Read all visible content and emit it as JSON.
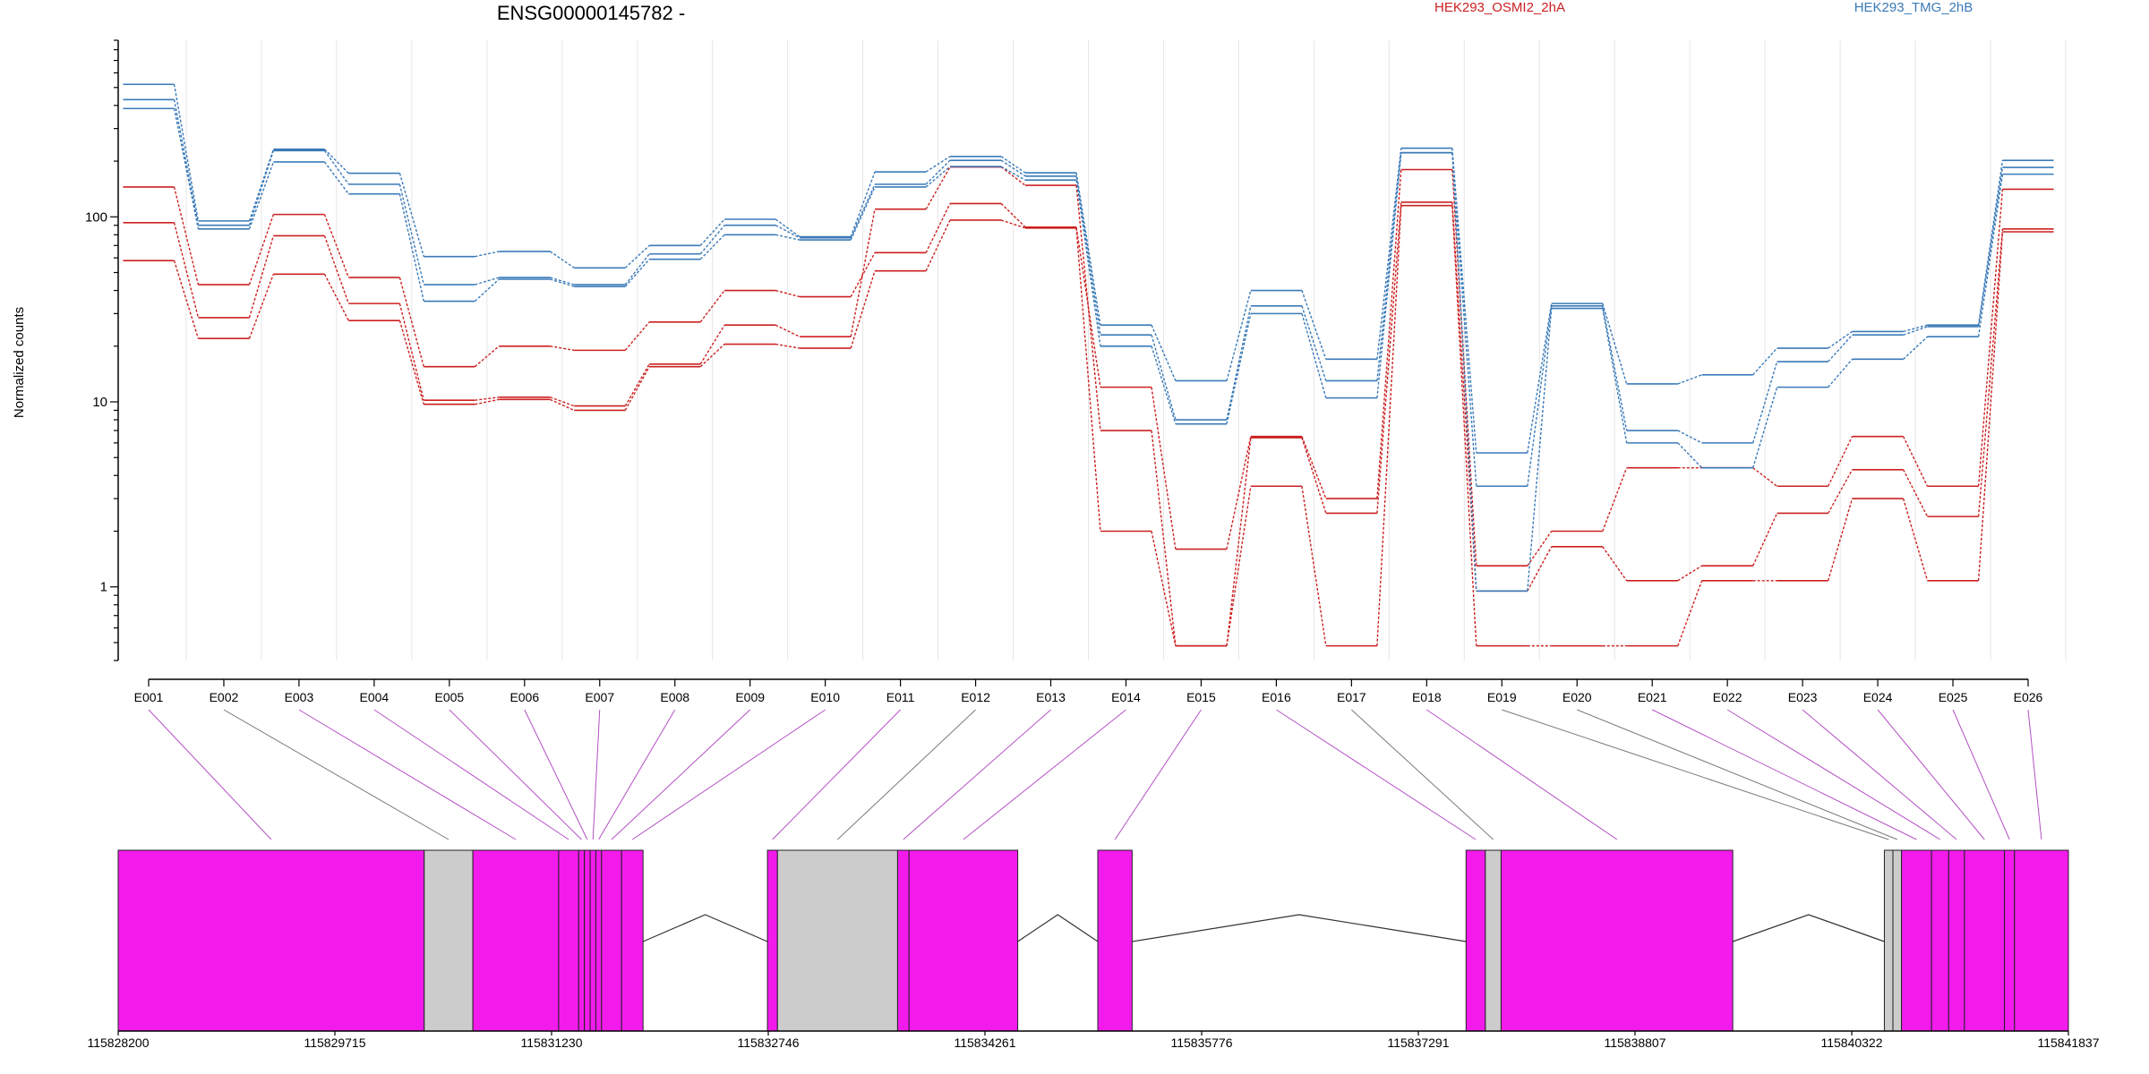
{
  "title": "ENSG00000145782 -",
  "chart_data": {
    "type": "line",
    "title": "ENSG00000145782 -",
    "ylabel": "Normalized counts",
    "xlabel": "",
    "yscale": "log",
    "ylim": [
      0.4,
      900
    ],
    "yticks": [
      {
        "value": 1,
        "label": "1"
      },
      {
        "value": 10,
        "label": "10"
      },
      {
        "value": 100,
        "label": "100"
      }
    ],
    "grid": "vertical",
    "legend_placement": "top",
    "categories": [
      "E001",
      "E002",
      "E003",
      "E004",
      "E005",
      "E006",
      "E007",
      "E008",
      "E009",
      "E010",
      "E011",
      "E012",
      "E013",
      "E014",
      "E015",
      "E016",
      "E017",
      "E018",
      "E019",
      "E020",
      "E021",
      "E022",
      "E023",
      "E024",
      "E025",
      "E026"
    ],
    "groups": [
      {
        "name": "HEK293_OSMI2_2hA",
        "color": "#cc2020"
      },
      {
        "name": "HEK293_TMG_2hB",
        "color": "#3a7ab8"
      }
    ],
    "series": [
      {
        "group": "HEK293_OSMI2_2hA",
        "values": [
          145,
          43,
          103,
          47,
          15.5,
          20,
          19,
          27,
          40,
          37,
          64,
          118,
          88,
          12,
          1.6,
          6.5,
          3,
          180,
          1.3,
          2,
          4.4,
          4.4,
          3.5,
          6.5,
          3.5,
          141
        ]
      },
      {
        "group": "HEK293_OSMI2_2hA",
        "values": [
          93,
          28.5,
          79,
          34,
          10.2,
          10.6,
          9.5,
          16,
          26,
          22.5,
          110,
          186,
          148,
          7,
          0.48,
          6.4,
          2.5,
          120,
          0.95,
          1.65,
          1.08,
          1.3,
          2.5,
          4.3,
          2.4,
          86
        ]
      },
      {
        "group": "HEK293_OSMI2_2hA",
        "values": [
          58,
          22,
          49,
          27.5,
          9.7,
          10.3,
          9,
          15.5,
          20.5,
          19.5,
          51,
          96,
          87,
          2,
          0.48,
          3.5,
          0.48,
          115,
          0.48,
          0.48,
          0.48,
          1.08,
          1.08,
          3,
          1.08,
          83
        ]
      },
      {
        "group": "HEK293_TMG_2hB",
        "values": [
          520,
          95,
          232,
          172,
          61,
          65,
          53,
          70,
          97,
          78,
          175,
          212,
          173,
          26,
          13,
          40,
          17,
          235,
          5.3,
          34,
          12.5,
          14,
          19.5,
          24,
          26,
          202
        ]
      },
      {
        "group": "HEK293_TMG_2hB",
        "values": [
          430,
          90,
          228,
          150,
          43,
          47,
          43,
          63,
          90,
          77,
          150,
          202,
          166,
          23,
          8,
          33,
          13,
          222,
          3.5,
          33,
          7,
          6,
          16.5,
          23,
          25.5,
          185
        ]
      },
      {
        "group": "HEK293_TMG_2hB",
        "values": [
          385,
          86,
          198,
          133,
          35,
          46,
          42,
          59,
          80,
          75,
          145,
          187,
          158,
          20,
          7.6,
          30,
          10.5,
          222,
          0.95,
          32,
          6,
          4.4,
          12,
          17,
          22.5,
          170
        ]
      }
    ]
  },
  "gene_model": {
    "coord_labels": [
      "115828200",
      "115829715",
      "115831230",
      "115832746",
      "115834261",
      "115835776",
      "115837291",
      "115838807",
      "115840322",
      "115841837"
    ],
    "coord_start": 115828200,
    "coord_end": 115841837,
    "colors": {
      "tested_exon": "#f21bec",
      "untested_exon": "#cccccc",
      "highlight_link": "#b450c4",
      "plain_link": "#7a7a7a",
      "intron": "#333333"
    },
    "blocks": [
      {
        "bin": "E001",
        "start": 115828200,
        "end": 115830340,
        "tested": true
      },
      {
        "bin": "E002",
        "start": 115830340,
        "end": 115830680,
        "tested": false
      },
      {
        "bin": "E003",
        "start": 115830680,
        "end": 115831280,
        "tested": true
      },
      {
        "bin": "E004",
        "start": 115831280,
        "end": 115831420,
        "tested": true
      },
      {
        "bin": "E005",
        "start": 115831420,
        "end": 115831460,
        "tested": true
      },
      {
        "bin": "E006",
        "start": 115831460,
        "end": 115831500,
        "tested": true
      },
      {
        "bin": "E007",
        "start": 115831500,
        "end": 115831540,
        "tested": true
      },
      {
        "bin": "E008",
        "start": 115831540,
        "end": 115831580,
        "tested": true
      },
      {
        "bin": "E009",
        "start": 115831580,
        "end": 115831720,
        "tested": true
      },
      {
        "bin": "E010",
        "start": 115831720,
        "end": 115831870,
        "tested": true
      },
      {
        "bin": "E011",
        "start": 115832740,
        "end": 115832810,
        "tested": true
      },
      {
        "bin": "E012",
        "start": 115832810,
        "end": 115833650,
        "tested": false
      },
      {
        "bin": "E013",
        "start": 115833650,
        "end": 115833730,
        "tested": true
      },
      {
        "bin": "E014",
        "start": 115833730,
        "end": 115834490,
        "tested": true
      },
      {
        "bin": "E015",
        "start": 115835050,
        "end": 115835290,
        "tested": true
      },
      {
        "bin": "E016",
        "start": 115837625,
        "end": 115837760,
        "tested": true
      },
      {
        "bin": "E017",
        "start": 115837760,
        "end": 115837870,
        "tested": false
      },
      {
        "bin": "E018",
        "start": 115837870,
        "end": 115839490,
        "tested": true
      },
      {
        "bin": "E019",
        "start": 115840550,
        "end": 115840610,
        "tested": false
      },
      {
        "bin": "E020",
        "start": 115840610,
        "end": 115840670,
        "tested": false
      },
      {
        "bin": "E021",
        "start": 115840670,
        "end": 115840880,
        "tested": true
      },
      {
        "bin": "E022",
        "start": 115840880,
        "end": 115841000,
        "tested": true
      },
      {
        "bin": "E023",
        "start": 115841000,
        "end": 115841110,
        "tested": true
      },
      {
        "bin": "E024",
        "start": 115841110,
        "end": 115841390,
        "tested": true
      },
      {
        "bin": "E025",
        "start": 115841390,
        "end": 115841460,
        "tested": true
      },
      {
        "bin": "E026",
        "start": 115841460,
        "end": 115841837,
        "tested": true
      }
    ],
    "introns": [
      {
        "start": 115831870,
        "end": 115832740
      },
      {
        "start": 115834490,
        "end": 115835050
      },
      {
        "start": 115835290,
        "end": 115837625
      },
      {
        "start": 115839490,
        "end": 115840550
      }
    ]
  }
}
